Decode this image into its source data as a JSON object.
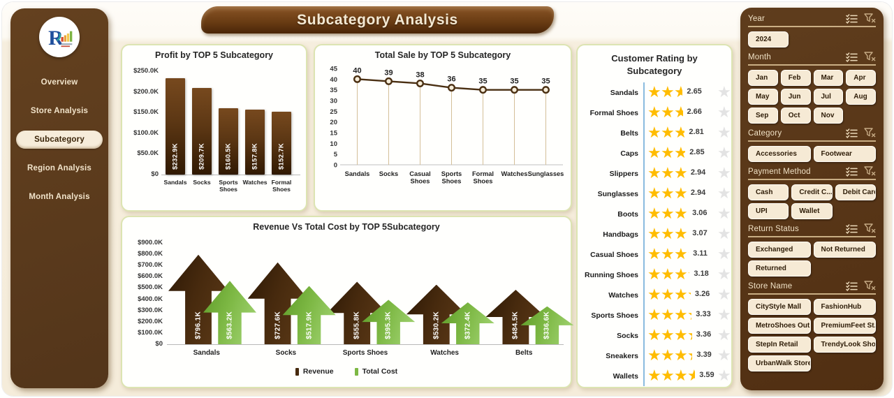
{
  "app": {
    "title": "Subcategory Analysis"
  },
  "logo": {
    "letter": "R"
  },
  "nav": {
    "items": [
      {
        "label": "Overview",
        "active": false
      },
      {
        "label": "Store Analysis",
        "active": false
      },
      {
        "label": "Subcategory",
        "active": true
      },
      {
        "label": "Region Analysis",
        "active": false
      },
      {
        "label": "Month Analysis",
        "active": false
      }
    ]
  },
  "colors": {
    "sidebar_brown": "#5B3A1E",
    "revenue_brown": "#472A0E",
    "cost_green": "#7DB844",
    "star_gold": "#FFBC00",
    "star_gray": "#E3E3E3",
    "panel_border": "#DCE4B2"
  },
  "chart_data": [
    {
      "type": "bar",
      "title": "Profit by TOP 5 Subcategory",
      "categories": [
        "Sandals",
        "Socks",
        "Sports Shoes",
        "Watches",
        "Formal Shoes"
      ],
      "values": [
        232.9,
        209.7,
        160.5,
        157.8,
        152.7
      ],
      "bar_labels": [
        "$232.9K",
        "$209.7K",
        "$160.5K",
        "$157.8K",
        "$152.7K"
      ],
      "ylabel": "",
      "xlabel": "",
      "ylim": [
        0,
        250
      ],
      "yticks": [
        {
          "v": 0,
          "label": "$0"
        },
        {
          "v": 50,
          "label": "$50.0K"
        },
        {
          "v": 100,
          "label": "$100.0K"
        },
        {
          "v": 150,
          "label": "$150.0K"
        },
        {
          "v": 200,
          "label": "$200.0K"
        },
        {
          "v": 250,
          "label": "$250.0K"
        }
      ]
    },
    {
      "type": "line",
      "title": "Total Sale by TOP 5 Subcategory",
      "categories": [
        "Sandals",
        "Socks",
        "Casual Shoes",
        "Sports Shoes",
        "Formal Shoes",
        "Watches",
        "Sunglasses"
      ],
      "values": [
        40,
        39,
        38,
        36,
        35,
        35,
        35
      ],
      "ylim": [
        0,
        45
      ],
      "yticks": [
        0,
        5,
        10,
        15,
        20,
        25,
        30,
        35,
        40,
        45
      ]
    },
    {
      "type": "bar",
      "variant": "arrow",
      "title": "Revenue Vs Total Cost by  TOP 5Subcategory",
      "categories": [
        "Sandals",
        "Socks",
        "Sports Shoes",
        "Watches",
        "Belts"
      ],
      "series": [
        {
          "name": "Revenue",
          "values": [
            796.1,
            727.6,
            555.8,
            530.2,
            484.5
          ],
          "labels": [
            "$796.1K",
            "$727.6K",
            "$555.8K",
            "$530.2K",
            "$484.5K"
          ]
        },
        {
          "name": "Total Cost",
          "values": [
            563.2,
            517.9,
            395.3,
            372.4,
            336.6
          ],
          "labels": [
            "$563.2K",
            "$517.9K",
            "$395.3K",
            "$372.4K",
            "$336.6K"
          ]
        }
      ],
      "ylim": [
        0,
        900
      ],
      "yticks": [
        {
          "v": 0,
          "label": "$0"
        },
        {
          "v": 100,
          "label": "$100.0K"
        },
        {
          "v": 200,
          "label": "$200.0K"
        },
        {
          "v": 300,
          "label": "$300.0K"
        },
        {
          "v": 400,
          "label": "$400.0K"
        },
        {
          "v": 500,
          "label": "$500.0K"
        },
        {
          "v": 600,
          "label": "$600.0K"
        },
        {
          "v": 700,
          "label": "$700.0K"
        },
        {
          "v": 800,
          "label": "$800.0K"
        },
        {
          "v": 900,
          "label": "$900.0K"
        }
      ],
      "legend": [
        "Revenue",
        "Total Cost"
      ]
    },
    {
      "type": "rating",
      "title": "Customer Rating by Subcategory",
      "max": 5,
      "items": [
        {
          "label": "Sandals",
          "value": 2.65
        },
        {
          "label": "Formal Shoes",
          "value": 2.66
        },
        {
          "label": "Belts",
          "value": 2.81
        },
        {
          "label": "Caps",
          "value": 2.85
        },
        {
          "label": "Slippers",
          "value": 2.94
        },
        {
          "label": "Sunglasses",
          "value": 2.94
        },
        {
          "label": "Boots",
          "value": 3.06
        },
        {
          "label": "Handbags",
          "value": 3.07
        },
        {
          "label": "Casual Shoes",
          "value": 3.11
        },
        {
          "label": "Running Shoes",
          "value": 3.18
        },
        {
          "label": "Watches",
          "value": 3.26
        },
        {
          "label": "Sports Shoes",
          "value": 3.33
        },
        {
          "label": "Socks",
          "value": 3.36
        },
        {
          "label": "Sneakers",
          "value": 3.39
        },
        {
          "label": "Wallets",
          "value": 3.59
        }
      ]
    }
  ],
  "filters": [
    {
      "label": "Year",
      "cols": 3,
      "options": [
        "2024"
      ]
    },
    {
      "label": "Month",
      "cols": 4,
      "options": [
        "Jan",
        "Feb",
        "Mar",
        "Apr",
        "May",
        "Jun",
        "Jul",
        "Aug",
        "Sep",
        "Oct",
        "Nov"
      ]
    },
    {
      "label": "Category",
      "cols": 2,
      "options": [
        "Accessories",
        "Footwear"
      ]
    },
    {
      "label": "Payment Method",
      "cols": 3,
      "options": [
        "Cash",
        "Credit C...",
        "Debit Card",
        "UPI",
        "Wallet"
      ]
    },
    {
      "label": "Return Status",
      "cols": 2,
      "options": [
        "Exchanged",
        "Not Returned",
        "Returned"
      ]
    },
    {
      "label": "Store Name",
      "cols": 2,
      "options": [
        "CityStyle Mall",
        "FashionHub",
        "MetroShoes Out...",
        "PremiumFeet St...",
        "StepIn Retail",
        "TrendyLook Shop",
        "UrbanWalk Store"
      ]
    }
  ]
}
